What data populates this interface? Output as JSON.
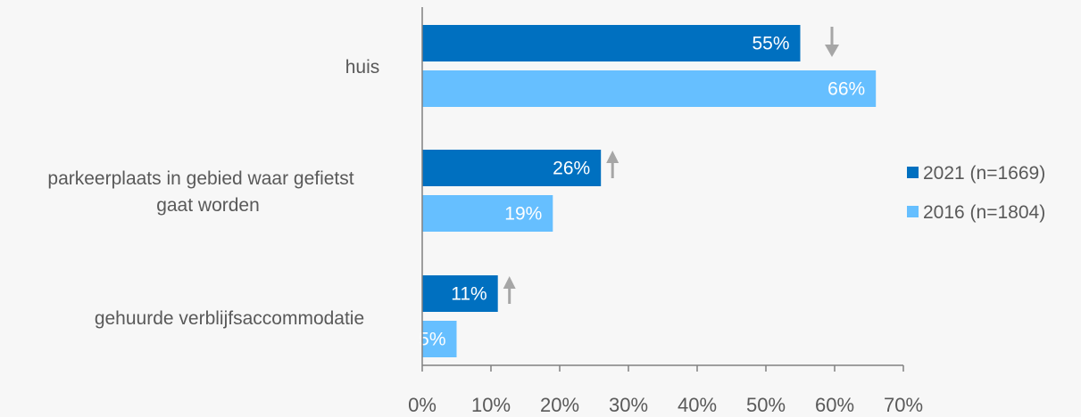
{
  "chart_data": {
    "type": "bar",
    "orientation": "horizontal",
    "categories": [
      [
        "huis"
      ],
      [
        "parkeerplaats in gebied waar gefietst",
        "gaat worden"
      ],
      [
        "gehuurde verblijfsaccommodatie"
      ]
    ],
    "series": [
      {
        "name": "2021 (n=1669)",
        "color": "#0070c0",
        "values": [
          55,
          26,
          11
        ],
        "labels": [
          "55%",
          "26%",
          "11%"
        ]
      },
      {
        "name": "2016 (n=1804)",
        "color": "#66bfff",
        "values": [
          66,
          19,
          5
        ],
        "labels": [
          "66%",
          "19%",
          "5%"
        ]
      }
    ],
    "change_indicators": [
      "down",
      "up",
      "up"
    ],
    "indicator_color": "#a6a6a6",
    "xlim": [
      0,
      70
    ],
    "xticks": [
      0,
      10,
      20,
      30,
      40,
      50,
      60,
      70
    ],
    "xtick_labels": [
      "0%",
      "10%",
      "20%",
      "30%",
      "40%",
      "50%",
      "60%",
      "70%"
    ],
    "title": "",
    "xlabel": "",
    "ylabel": "",
    "grid": false,
    "legend_position": "right",
    "axis_color": "#808080",
    "text_color": "#595959"
  }
}
